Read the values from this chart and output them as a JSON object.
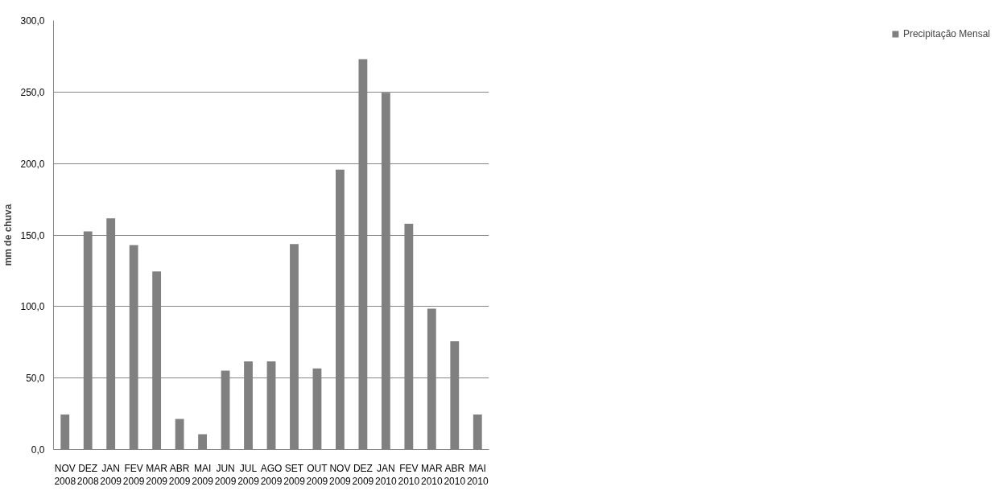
{
  "chart_data": {
    "type": "bar",
    "ylabel": "mm de chuva",
    "categories": [
      "NOV\n2008",
      "DEZ\n2008",
      "JAN\n2009",
      "FEV\n2009",
      "MAR\n2009",
      "ABR\n2009",
      "MAI\n2009",
      "JUN\n2009",
      "JUL\n2009",
      "AGO\n2009",
      "SET\n2009",
      "OUT\n2009",
      "NOV\n2009",
      "DEZ\n2009",
      "JAN\n2010",
      "FEV\n2010",
      "MAR\n2010",
      "ABR\n2010",
      "MAI\n2010"
    ],
    "series": [
      {
        "name": "Precipitação Mensal",
        "color": "#808080",
        "values": [
          24.5,
          152.6,
          161.7,
          142.9,
          124.5,
          21.4,
          10.7,
          55.2,
          61.7,
          61.7,
          143.6,
          56.7,
          195.8,
          273.0,
          249.5,
          157.9,
          98.5,
          75.7,
          24.5
        ]
      }
    ],
    "ylim": [
      0,
      300
    ],
    "yticks": [
      {
        "value": 0,
        "label": "0,0"
      },
      {
        "value": 50,
        "label": "50,0"
      },
      {
        "value": 100,
        "label": "100,0"
      },
      {
        "value": 150,
        "label": "150,0"
      },
      {
        "value": 200,
        "label": "200,0"
      },
      {
        "value": 250,
        "label": "250,0"
      },
      {
        "value": 300,
        "label": "300,0"
      }
    ],
    "grid": "y",
    "legend": "right"
  }
}
